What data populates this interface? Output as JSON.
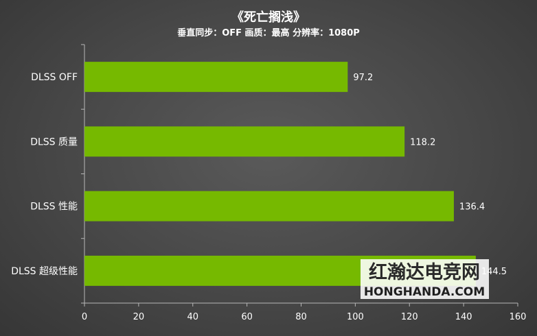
{
  "chart_data": {
    "type": "bar",
    "orientation": "horizontal",
    "title": "《死亡搁浅》",
    "subtitle": "垂直同步：OFF 画质：最高 分辨率：1080P",
    "categories": [
      "DLSS OFF",
      "DLSS 质量",
      "DLSS 性能",
      "DLSS 超级性能"
    ],
    "values": [
      97.2,
      118.2,
      136.4,
      144.5
    ],
    "value_labels": [
      "97.2",
      "118.2",
      "136.4",
      "144.5"
    ],
    "xlim": [
      0,
      160
    ],
    "xticks": [
      "0",
      "20",
      "40",
      "60",
      "80",
      "100",
      "120",
      "140",
      "160"
    ],
    "grid": false,
    "colors": {
      "bar": "#76b900",
      "background": "#4a4a4a"
    }
  },
  "watermark": {
    "cn": "红瀚达电竞网",
    "en": "HONGHANDA.COM"
  }
}
